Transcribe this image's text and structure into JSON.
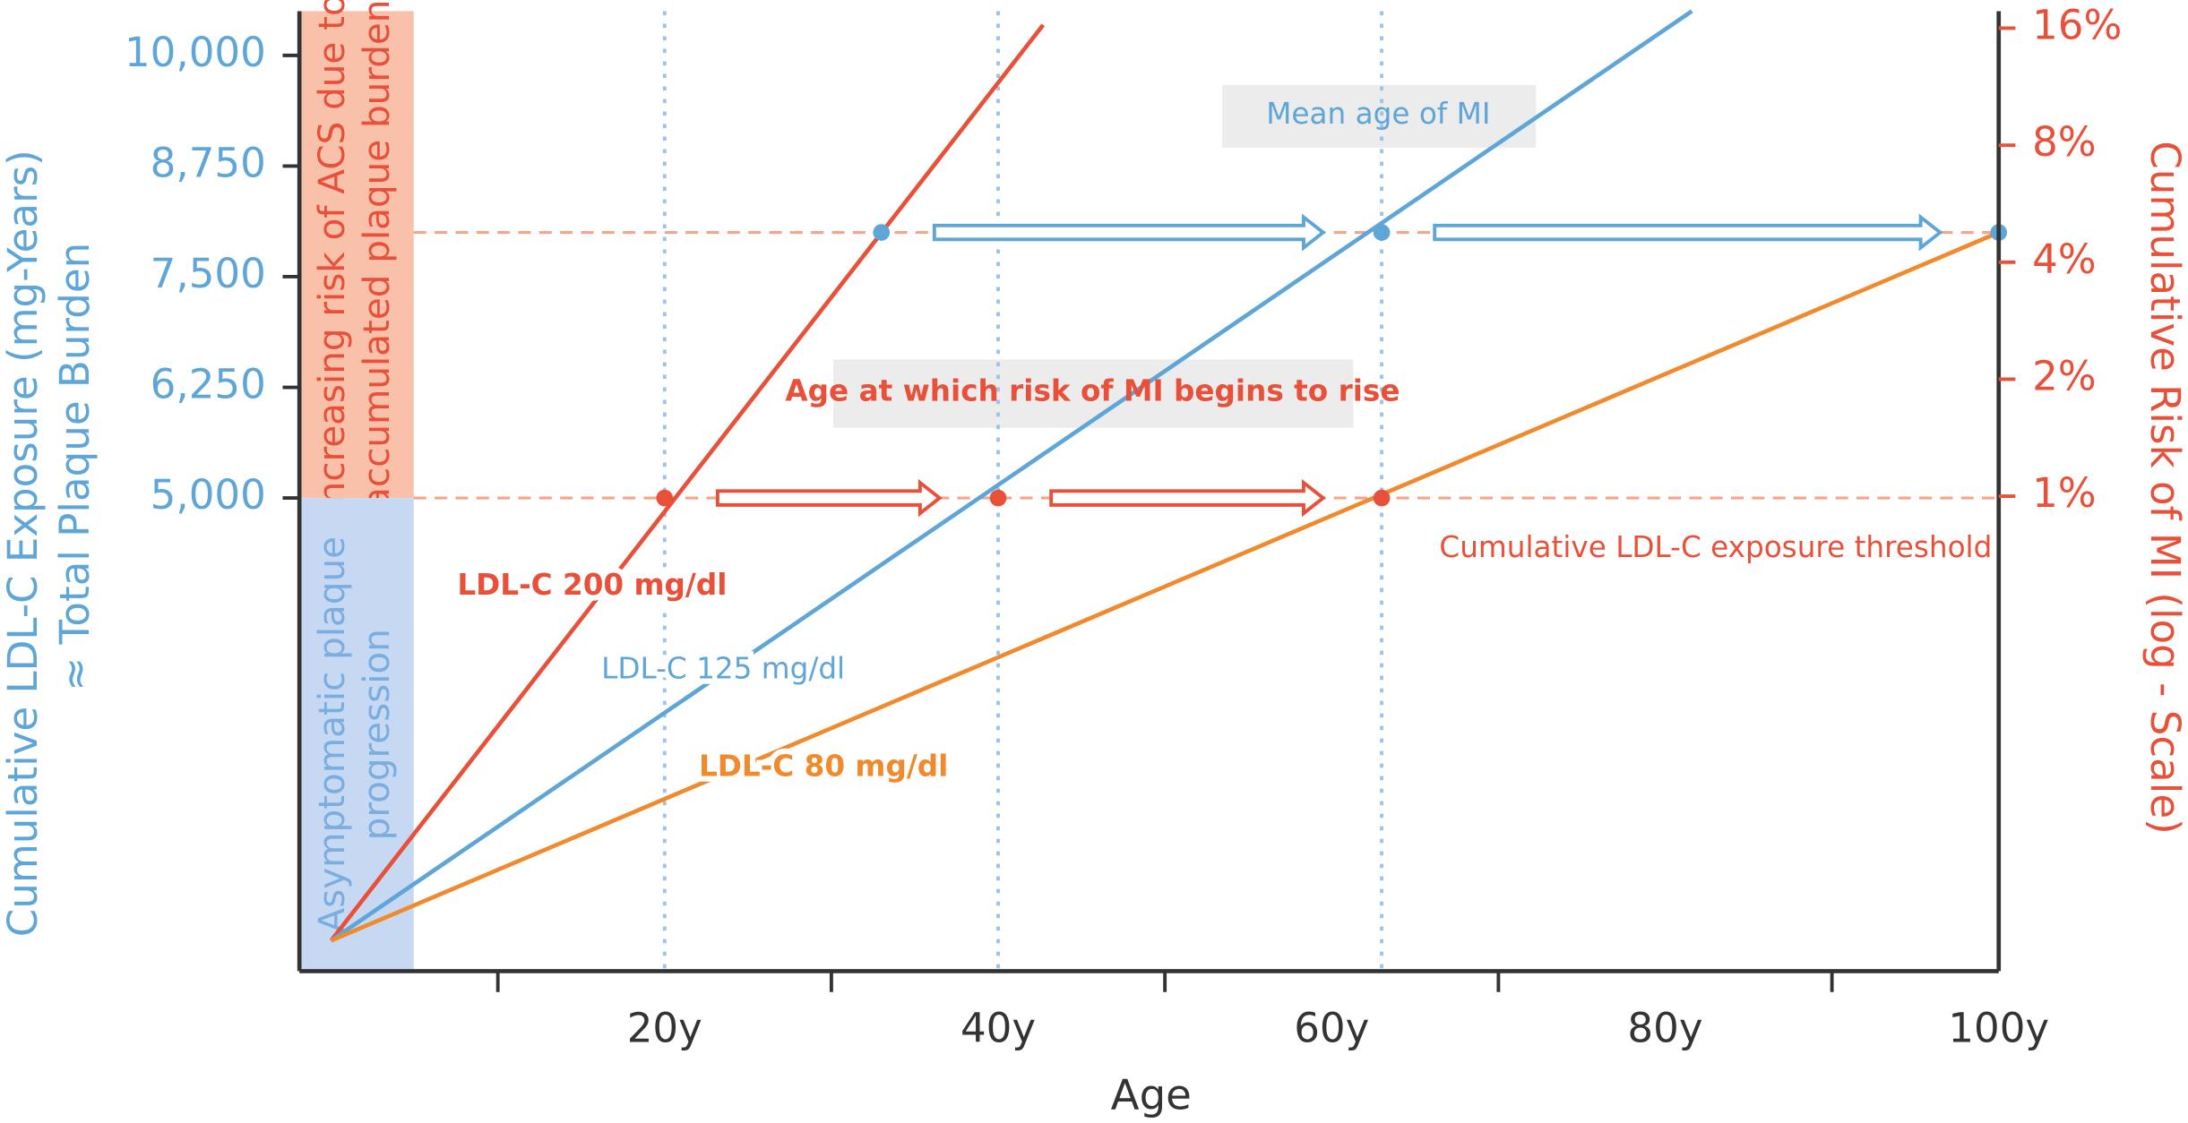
{
  "chart_data": {
    "type": "line",
    "x_label": "Age",
    "y_label": [
      "Cumulative LDL-C Exposure (mg-Years)",
      "≈ Total Plaque Burden"
    ],
    "y2_label": "Cumulative Risk of MI (log - Scale)",
    "y2_log": true,
    "xlim": [
      -1.9,
      100
    ],
    "xticks": [
      {
        "value": 20,
        "label": "20y"
      },
      {
        "value": 40,
        "label": "40y"
      },
      {
        "value": 60,
        "label": "60y"
      },
      {
        "value": 80,
        "label": "80y"
      },
      {
        "value": 100,
        "label": "100y"
      }
    ],
    "xminorticks": [
      10,
      30,
      50,
      70,
      90
    ],
    "ylim": [
      -345,
      10500
    ],
    "yticks": [
      {
        "value": 5000,
        "label": "5,000"
      },
      {
        "value": 6250,
        "label": "6,250"
      },
      {
        "value": 7500,
        "label": "7,500"
      },
      {
        "value": 8750,
        "label": "8,750"
      },
      {
        "value": 10000,
        "label": "10,000"
      }
    ],
    "y2lim": [
      0.06,
      17.7
    ],
    "y2ticks": [
      {
        "value": 1,
        "label": "1%"
      },
      {
        "value": 2,
        "label": "2%"
      },
      {
        "value": 4,
        "label": "4%"
      },
      {
        "value": 8,
        "label": "8%"
      },
      {
        "value": 16,
        "label": "16%"
      }
    ],
    "series": [
      {
        "name": "LDL-C 200 mg/dl",
        "color": "#e8503a",
        "x": [
          0,
          42.7
        ],
        "values": [
          0,
          10345
        ]
      },
      {
        "name": "LDL-C 125 mg/dl",
        "color": "#5ea5d8",
        "x": [
          0,
          81.6
        ],
        "values": [
          0,
          10500
        ]
      },
      {
        "name": "LDL-C 80 mg/dl",
        "color": "#f08a2c",
        "x": [
          0,
          100
        ],
        "values": [
          0,
          8000
        ]
      }
    ],
    "markers": [
      {
        "color": "#e8503a",
        "x": [
          20,
          40,
          63
        ],
        "values": [
          5000,
          5000,
          5000
        ]
      },
      {
        "color": "#5ea5d8",
        "x": [
          33,
          63,
          100
        ],
        "values": [
          8000,
          8000,
          8000
        ]
      }
    ],
    "vlines": [
      20,
      40,
      63
    ],
    "vline_color": "#9cc3e8",
    "hlines": [
      5000,
      8000
    ],
    "hline_color": "#f4a58a",
    "bands": [
      {
        "label": [
          "Increasing risk of ACS due to",
          "accumulated plaque burden"
        ],
        "range": [
          5000,
          10500
        ],
        "color": "#f9c0aa",
        "text_color": "#e8503a"
      },
      {
        "label": [
          "Asymptomatic plaque",
          "progression"
        ],
        "range": [
          -345,
          5000
        ],
        "color": "#c7d9f2",
        "text_color": "#7aaee0"
      }
    ],
    "annotations": {
      "mean_age": "Mean age of MI",
      "risk_rise": "Age at which risk of MI begins to rise",
      "threshold": "Cumulative LDL-C exposure threshold"
    }
  }
}
